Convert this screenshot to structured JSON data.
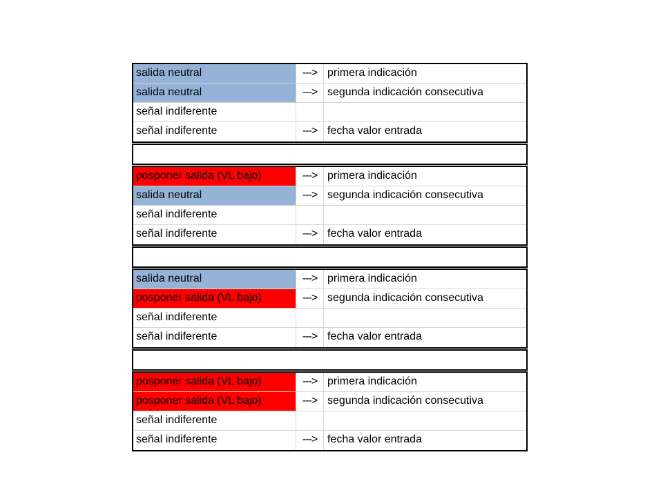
{
  "colors": {
    "neutral_fill": "#95B3D7",
    "postpone_fill": "#FF0000",
    "block_border": "#000000",
    "grid_line": "#D4D4D4",
    "text": "#000000",
    "background": "#FFFFFF"
  },
  "table": {
    "arrow_symbol": "--->",
    "blocks": [
      {
        "rows": [
          {
            "signal": "salida neutral",
            "signal_fill": "blue",
            "arrow": "--->",
            "indication": "primera indicación"
          },
          {
            "signal": "salida neutral",
            "signal_fill": "blue",
            "arrow": "--->",
            "indication": "segunda indicación consecutiva"
          },
          {
            "signal": "señal indiferente",
            "signal_fill": "none",
            "arrow": "",
            "indication": ""
          },
          {
            "signal": "señal indiferente",
            "signal_fill": "none",
            "arrow": "--->",
            "indication": "fecha valor entrada"
          }
        ]
      },
      {
        "rows": [
          {
            "signal": "posponer salida (VL bajo)",
            "signal_fill": "red",
            "arrow": "--->",
            "indication": "primera indicación"
          },
          {
            "signal": "salida neutral",
            "signal_fill": "blue",
            "arrow": "--->",
            "indication": "segunda indicación consecutiva"
          },
          {
            "signal": "señal indiferente",
            "signal_fill": "none",
            "arrow": "",
            "indication": ""
          },
          {
            "signal": "señal indiferente",
            "signal_fill": "none",
            "arrow": "--->",
            "indication": "fecha valor entrada"
          }
        ]
      },
      {
        "rows": [
          {
            "signal": "salida neutral",
            "signal_fill": "blue",
            "arrow": "--->",
            "indication": "primera indicación"
          },
          {
            "signal": "posponer salida (VL bajo)",
            "signal_fill": "red",
            "arrow": "--->",
            "indication": "segunda indicación consecutiva"
          },
          {
            "signal": "señal indiferente",
            "signal_fill": "none",
            "arrow": "",
            "indication": ""
          },
          {
            "signal": "señal indiferente",
            "signal_fill": "none",
            "arrow": "--->",
            "indication": "fecha valor entrada"
          }
        ]
      },
      {
        "rows": [
          {
            "signal": "posponer salida (VL bajo)",
            "signal_fill": "red",
            "arrow": "--->",
            "indication": "primera indicación"
          },
          {
            "signal": "posponer salida (VL bajo)",
            "signal_fill": "red",
            "arrow": "--->",
            "indication": "segunda indicación consecutiva"
          },
          {
            "signal": "señal indiferente",
            "signal_fill": "none",
            "arrow": "",
            "indication": ""
          },
          {
            "signal": "señal indiferente",
            "signal_fill": "none",
            "arrow": "--->",
            "indication": "fecha valor entrada"
          }
        ]
      }
    ]
  }
}
